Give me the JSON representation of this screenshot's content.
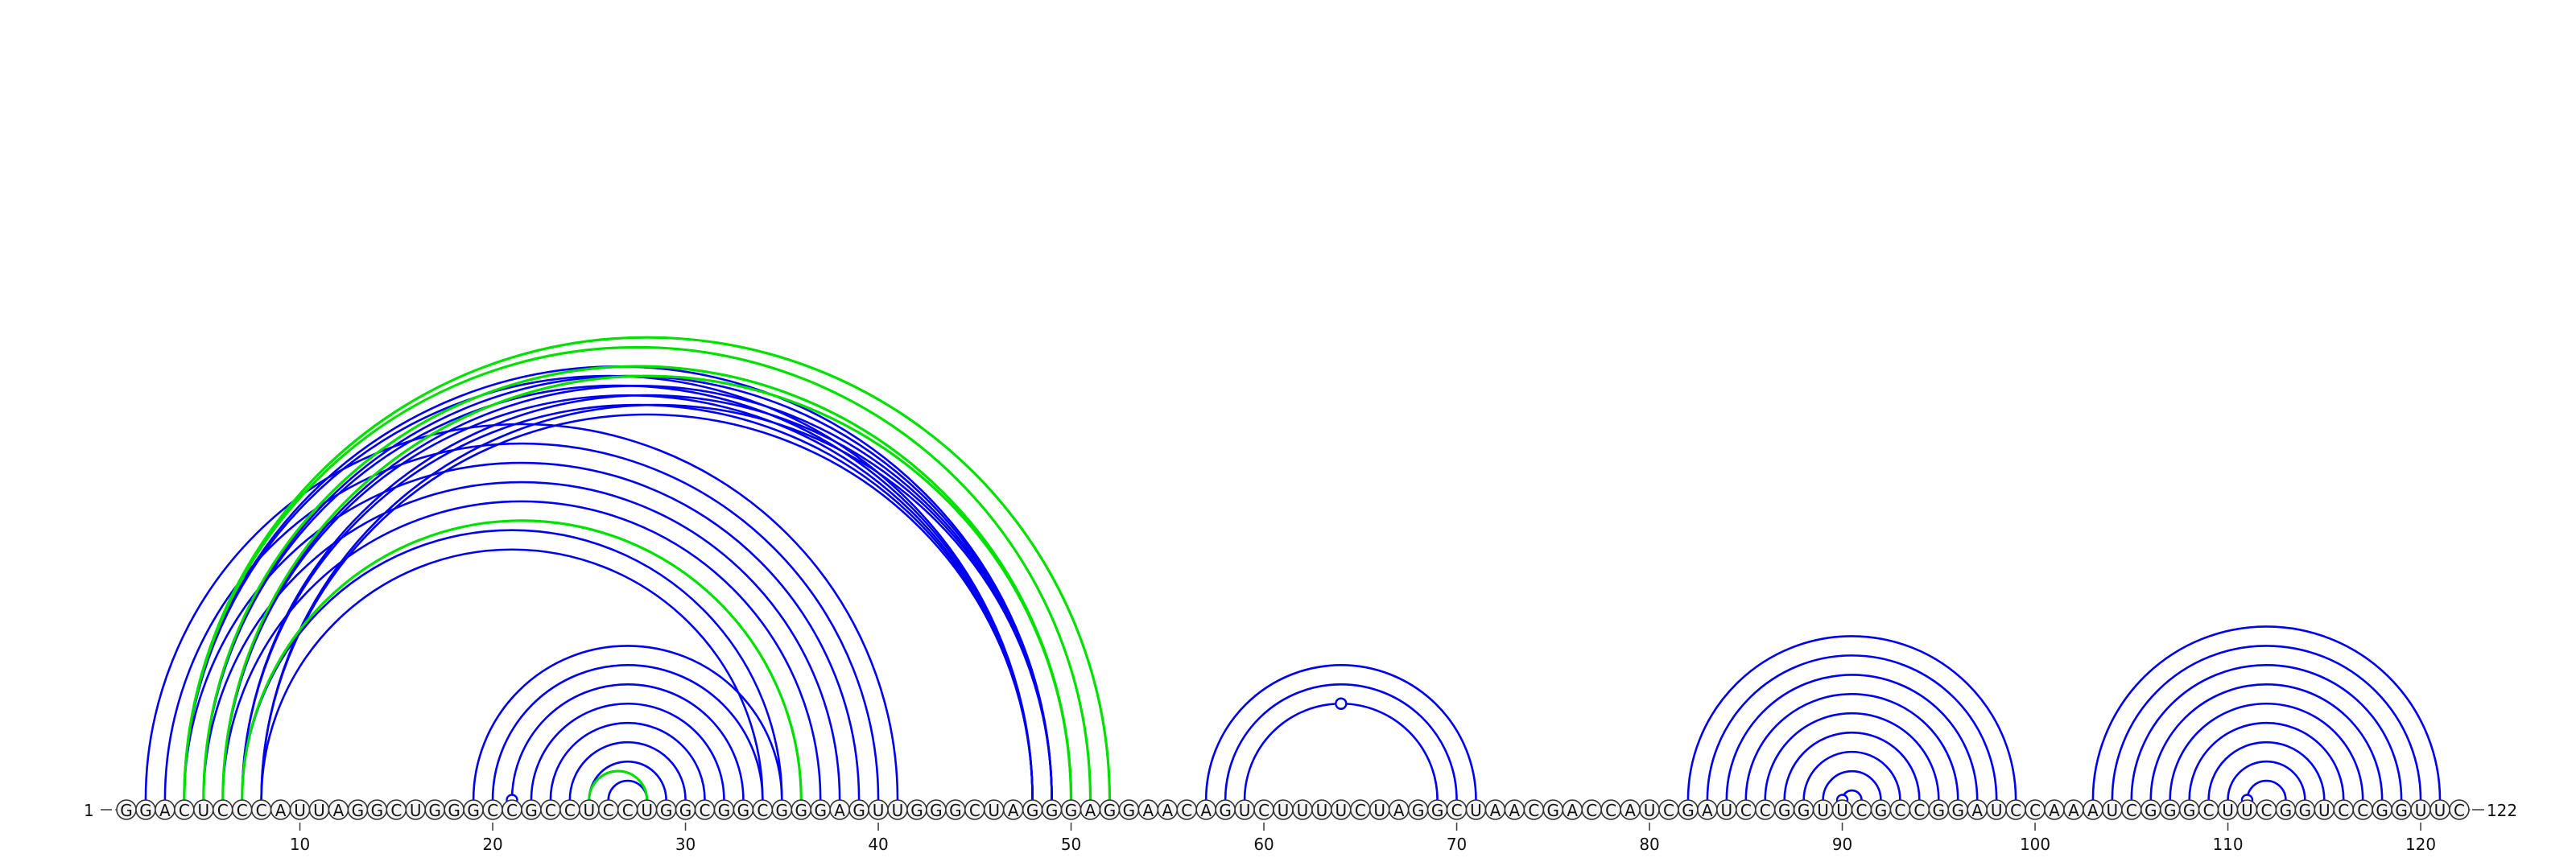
{
  "sequence": "GGACUCCCAUUAGGCUGGGCCGCCUCCUGGCGGCGGGAGUUGGGCUAGGGAGGAACAGUCUUUUCUAGGCUAACGACCAUCGAUCCGGUUCGCCGGAUCCAAAUCGGGCUUCGGUCCGGUUC",
  "start_label": "1",
  "end_label": "122",
  "ticks": [
    "10",
    "20",
    "30",
    "40",
    "50",
    "60",
    "70",
    "80",
    "90",
    "100",
    "110",
    "120"
  ],
  "colors": {
    "pair_arc": "#0000ee",
    "alt_arc": "#00e000",
    "marker_fill": "#ffffff"
  },
  "chart_data": {
    "type": "arc-diagram",
    "length": 122,
    "pairs": [
      [
        2,
        41
      ],
      [
        3,
        40
      ],
      [
        4,
        39
      ],
      [
        5,
        38
      ],
      [
        6,
        37
      ],
      [
        7,
        35
      ],
      [
        8,
        34
      ],
      [
        19,
        35
      ],
      [
        20,
        34
      ],
      [
        21,
        33
      ],
      [
        22,
        32
      ],
      [
        23,
        31
      ],
      [
        24,
        30
      ],
      [
        25,
        29
      ],
      [
        26,
        28
      ],
      [
        4,
        48
      ],
      [
        5,
        48
      ],
      [
        6,
        48
      ],
      [
        7,
        48
      ],
      [
        8,
        48
      ],
      [
        4,
        49
      ],
      [
        5,
        49
      ],
      [
        6,
        49
      ],
      [
        7,
        49
      ],
      [
        8,
        49
      ],
      [
        57,
        71
      ],
      [
        58,
        70
      ],
      [
        59,
        69
      ],
      [
        82,
        99
      ],
      [
        83,
        98
      ],
      [
        84,
        97
      ],
      [
        85,
        96
      ],
      [
        86,
        95
      ],
      [
        87,
        94
      ],
      [
        88,
        93
      ],
      [
        89,
        92
      ],
      [
        90,
        91
      ],
      [
        103,
        121
      ],
      [
        104,
        120
      ],
      [
        105,
        119
      ],
      [
        106,
        118
      ],
      [
        107,
        117
      ],
      [
        108,
        116
      ],
      [
        109,
        115
      ],
      [
        110,
        114
      ],
      [
        111,
        113
      ]
    ],
    "alt_pairs": [
      [
        4,
        52
      ],
      [
        4,
        51
      ],
      [
        5,
        50
      ],
      [
        6,
        50
      ],
      [
        7,
        36
      ],
      [
        25,
        28
      ]
    ],
    "markers": [
      21,
      64,
      90,
      111
    ]
  }
}
